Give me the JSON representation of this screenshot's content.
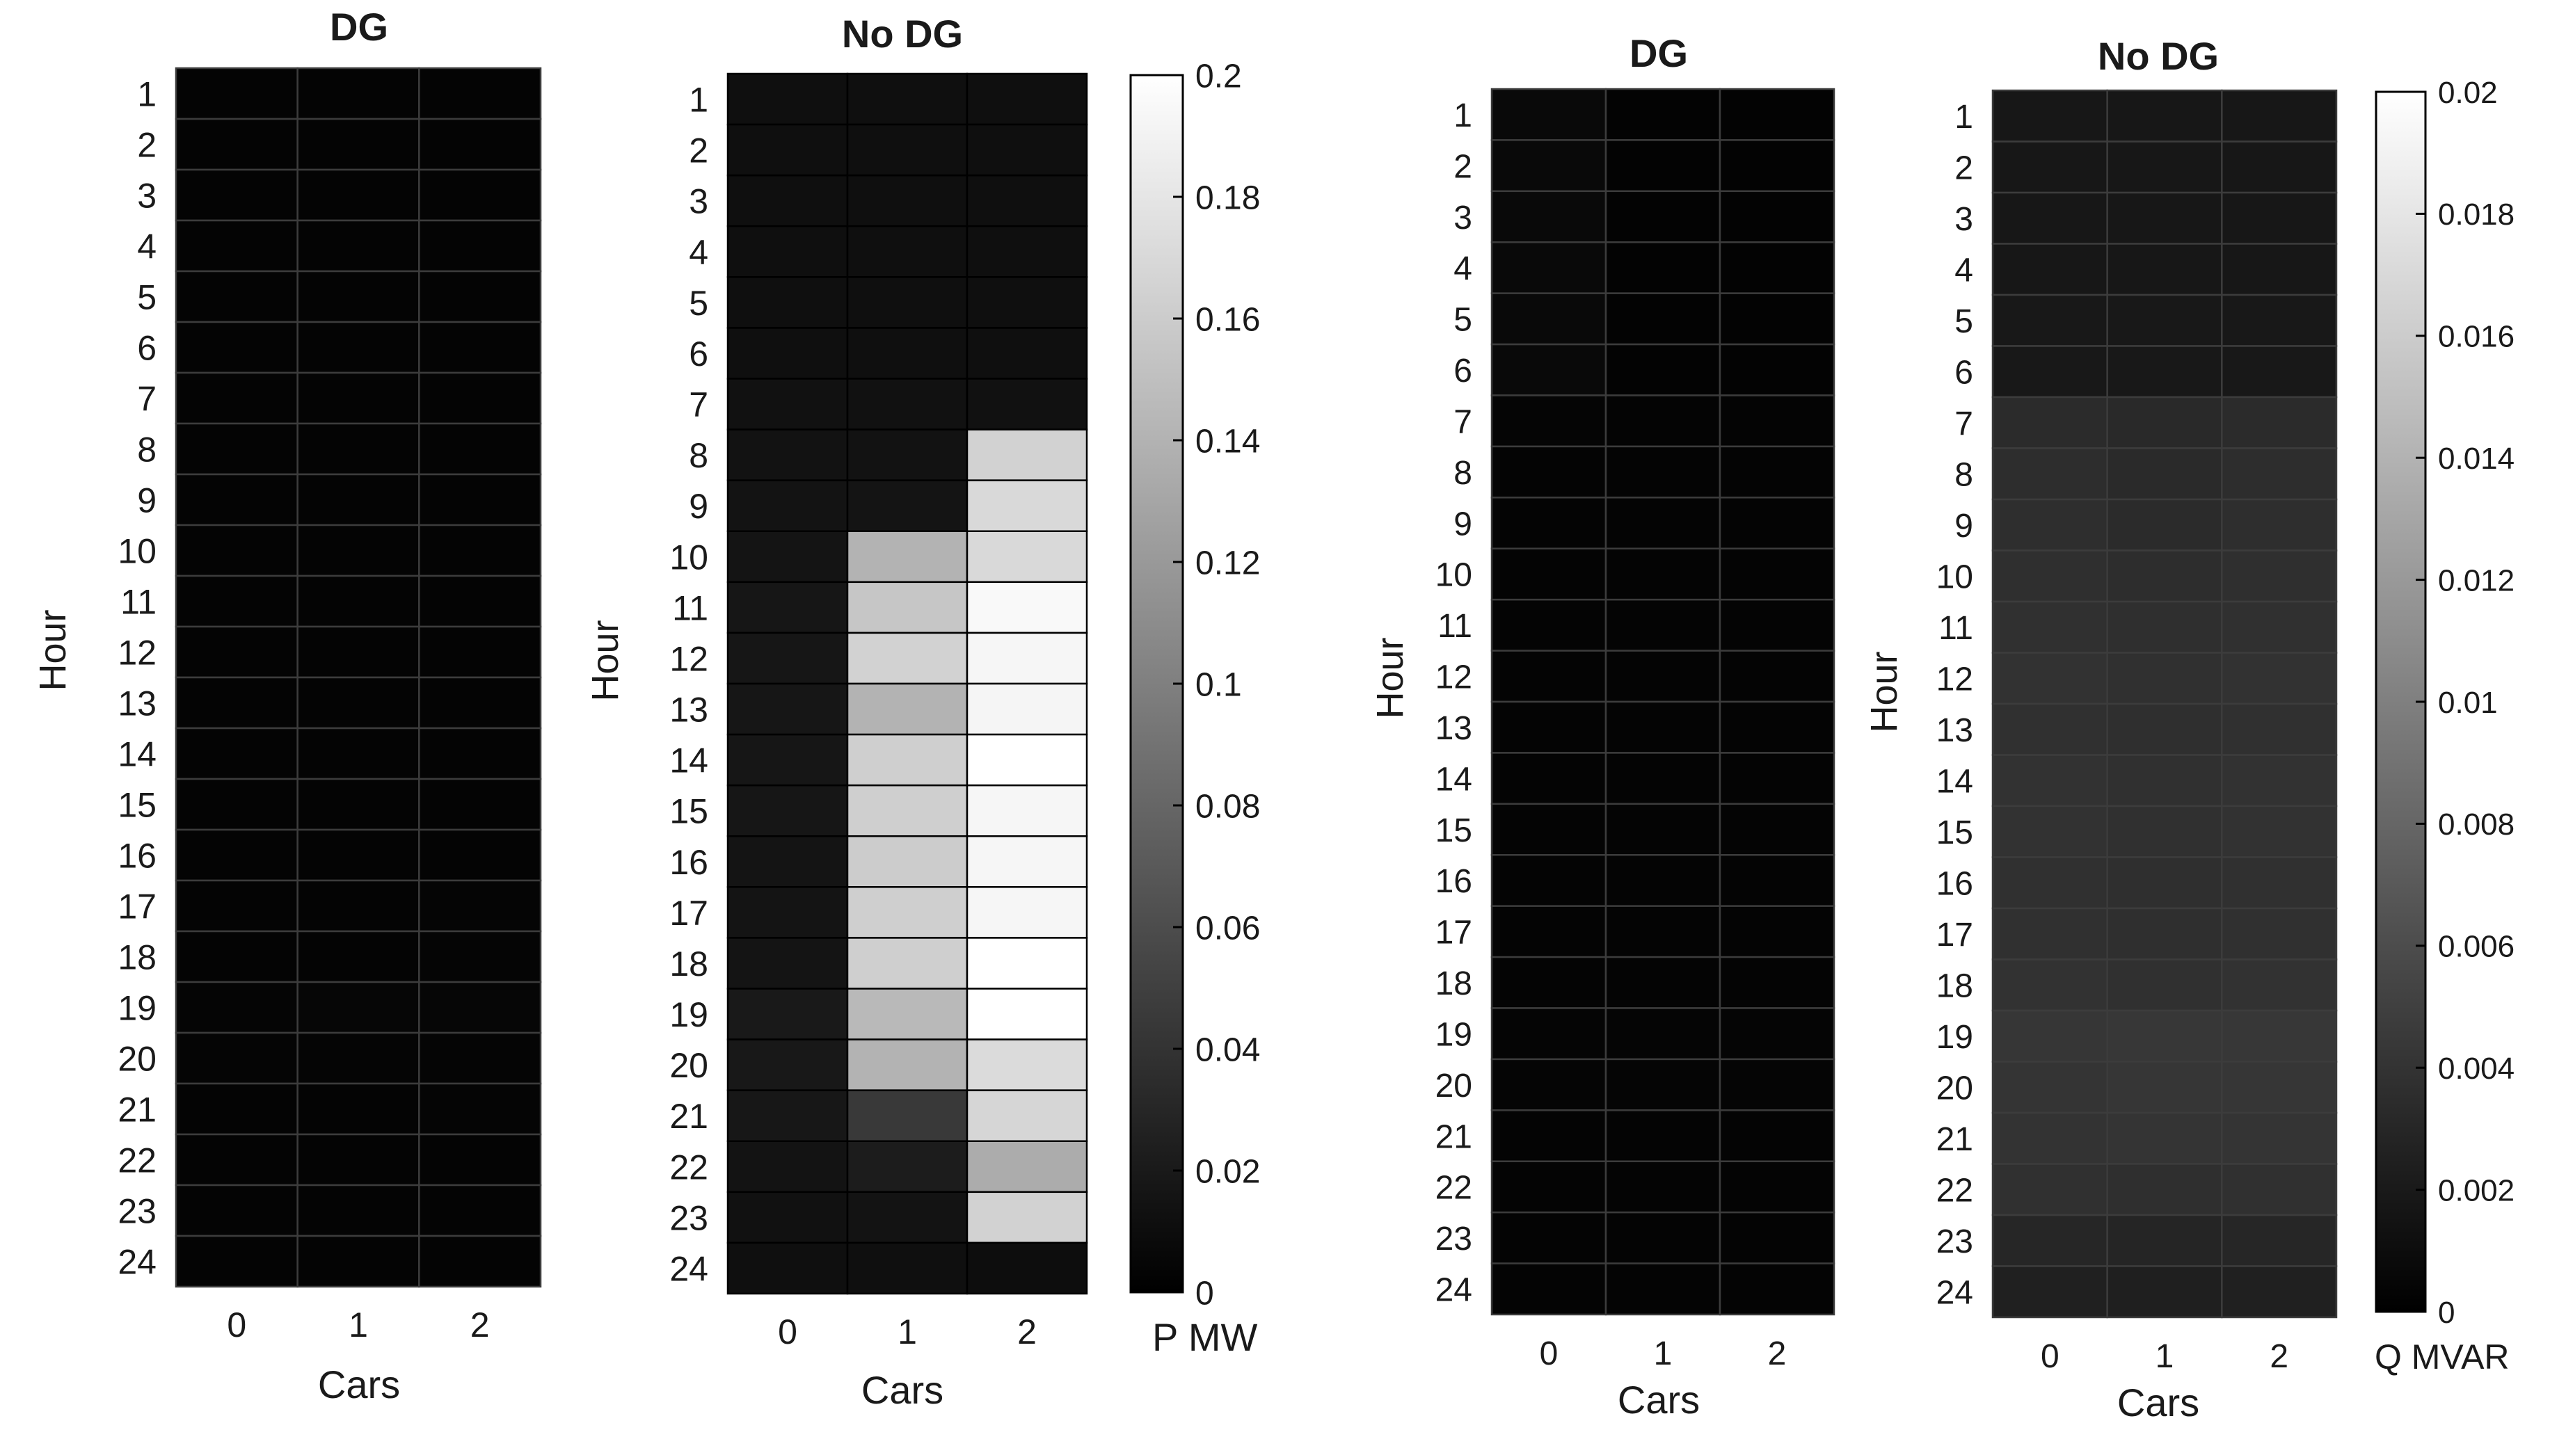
{
  "figure": {
    "panels": [
      {
        "id": "p-dg",
        "title": "DG",
        "xlabel": "Cars",
        "ylabel": "Hour"
      },
      {
        "id": "p-nodg",
        "title": "No DG",
        "xlabel": "Cars",
        "ylabel": "Hour"
      },
      {
        "id": "q-dg",
        "title": "DG",
        "xlabel": "Cars",
        "ylabel": "Hour"
      },
      {
        "id": "q-nodg",
        "title": "No DG",
        "xlabel": "Cars",
        "ylabel": "Hour"
      }
    ],
    "colorbars": [
      {
        "id": "cb-p",
        "label": "P MW",
        "min": 0,
        "max": 0.2,
        "ticks": [
          "0.2",
          "0.18",
          "0.16",
          "0.14",
          "0.12",
          "0.1",
          "0.08",
          "0.06",
          "0.04",
          "0.02",
          "0"
        ],
        "tick_values": [
          0.2,
          0.18,
          0.16,
          0.14,
          0.12,
          0.1,
          0.08,
          0.06,
          0.04,
          0.02,
          0
        ]
      },
      {
        "id": "cb-q",
        "label": "Q MVAR",
        "min": 0,
        "max": 0.02,
        "ticks": [
          "0.02",
          "0.018",
          "0.016",
          "0.014",
          "0.012",
          "0.01",
          "0.008",
          "0.006",
          "0.004",
          "0.002",
          "0"
        ],
        "tick_values": [
          0.02,
          0.018,
          0.016,
          0.014,
          0.012,
          0.01,
          0.008,
          0.006,
          0.004,
          0.002,
          0
        ]
      }
    ]
  },
  "chart_data": [
    {
      "type": "heatmap",
      "title": "DG",
      "xlabel": "Cars",
      "ylabel": "Hour",
      "x": [
        "0",
        "1",
        "2"
      ],
      "y": [
        "1",
        "2",
        "3",
        "4",
        "5",
        "6",
        "7",
        "8",
        "9",
        "10",
        "11",
        "12",
        "13",
        "14",
        "15",
        "16",
        "17",
        "18",
        "19",
        "20",
        "21",
        "22",
        "23",
        "24"
      ],
      "colorbar": {
        "label": "P MW",
        "min": 0,
        "max": 0.2
      },
      "values": [
        [
          0.003,
          0.003,
          0.003
        ],
        [
          0.003,
          0.003,
          0.003
        ],
        [
          0.003,
          0.003,
          0.003
        ],
        [
          0.003,
          0.003,
          0.003
        ],
        [
          0.003,
          0.003,
          0.003
        ],
        [
          0.003,
          0.003,
          0.003
        ],
        [
          0.003,
          0.003,
          0.003
        ],
        [
          0.003,
          0.003,
          0.003
        ],
        [
          0.003,
          0.003,
          0.003
        ],
        [
          0.003,
          0.003,
          0.003
        ],
        [
          0.003,
          0.003,
          0.003
        ],
        [
          0.003,
          0.003,
          0.003
        ],
        [
          0.003,
          0.003,
          0.003
        ],
        [
          0.003,
          0.003,
          0.003
        ],
        [
          0.003,
          0.003,
          0.003
        ],
        [
          0.003,
          0.003,
          0.003
        ],
        [
          0.003,
          0.003,
          0.004
        ],
        [
          0.003,
          0.003,
          0.004
        ],
        [
          0.004,
          0.005,
          0.005
        ],
        [
          0.004,
          0.004,
          0.004
        ],
        [
          0.003,
          0.003,
          0.004
        ],
        [
          0.003,
          0.003,
          0.003
        ],
        [
          0.003,
          0.003,
          0.003
        ],
        [
          0.003,
          0.003,
          0.003
        ]
      ]
    },
    {
      "type": "heatmap",
      "title": "No DG",
      "xlabel": "Cars",
      "ylabel": "Hour",
      "x": [
        "0",
        "1",
        "2"
      ],
      "y": [
        "1",
        "2",
        "3",
        "4",
        "5",
        "6",
        "7",
        "8",
        "9",
        "10",
        "11",
        "12",
        "13",
        "14",
        "15",
        "16",
        "17",
        "18",
        "19",
        "20",
        "21",
        "22",
        "23",
        "24"
      ],
      "colorbar": {
        "label": "P MW",
        "min": 0,
        "max": 0.2
      },
      "values": [
        [
          0.012,
          0.012,
          0.012
        ],
        [
          0.012,
          0.012,
          0.012
        ],
        [
          0.012,
          0.012,
          0.012
        ],
        [
          0.012,
          0.012,
          0.012
        ],
        [
          0.012,
          0.012,
          0.012
        ],
        [
          0.012,
          0.012,
          0.012
        ],
        [
          0.013,
          0.013,
          0.013
        ],
        [
          0.014,
          0.014,
          0.165
        ],
        [
          0.015,
          0.016,
          0.17
        ],
        [
          0.016,
          0.14,
          0.17
        ],
        [
          0.017,
          0.155,
          0.195
        ],
        [
          0.017,
          0.165,
          0.193
        ],
        [
          0.017,
          0.14,
          0.192
        ],
        [
          0.017,
          0.162,
          0.2
        ],
        [
          0.017,
          0.162,
          0.193
        ],
        [
          0.016,
          0.16,
          0.193
        ],
        [
          0.016,
          0.162,
          0.193
        ],
        [
          0.016,
          0.162,
          0.2
        ],
        [
          0.02,
          0.145,
          0.2
        ],
        [
          0.019,
          0.14,
          0.172
        ],
        [
          0.018,
          0.045,
          0.168
        ],
        [
          0.015,
          0.022,
          0.135
        ],
        [
          0.013,
          0.015,
          0.165
        ],
        [
          0.012,
          0.012,
          0.01
        ]
      ]
    },
    {
      "type": "heatmap",
      "title": "DG",
      "xlabel": "Cars",
      "ylabel": "Hour",
      "x": [
        "0",
        "1",
        "2"
      ],
      "y": [
        "1",
        "2",
        "3",
        "4",
        "5",
        "6",
        "7",
        "8",
        "9",
        "10",
        "11",
        "12",
        "13",
        "14",
        "15",
        "16",
        "17",
        "18",
        "19",
        "20",
        "21",
        "22",
        "23",
        "24"
      ],
      "colorbar": {
        "label": "Q MVAR",
        "min": 0,
        "max": 0.02
      },
      "values": [
        [
          0.0007,
          0.0002,
          0.0002
        ],
        [
          0.0007,
          0.0002,
          0.0002
        ],
        [
          0.0007,
          0.0002,
          0.0002
        ],
        [
          0.0007,
          0.0002,
          0.0002
        ],
        [
          0.0007,
          0.0002,
          0.0002
        ],
        [
          0.0007,
          0.0002,
          0.0002
        ],
        [
          0.0004,
          0.0003,
          0.0003
        ],
        [
          0.0003,
          0.0003,
          0.0003
        ],
        [
          0.0003,
          0.0003,
          0.0003
        ],
        [
          0.0003,
          0.0003,
          0.0003
        ],
        [
          0.0003,
          0.0003,
          0.0003
        ],
        [
          0.0003,
          0.0003,
          0.0003
        ],
        [
          0.0003,
          0.0003,
          0.0003
        ],
        [
          0.0003,
          0.0003,
          0.0003
        ],
        [
          0.0003,
          0.0003,
          0.0003
        ],
        [
          0.0003,
          0.0003,
          0.0003
        ],
        [
          0.0003,
          0.0003,
          0.0003
        ],
        [
          0.0003,
          0.0003,
          0.0003
        ],
        [
          0.0004,
          0.0004,
          0.0004
        ],
        [
          0.0004,
          0.0004,
          0.0004
        ],
        [
          0.0003,
          0.0003,
          0.0003
        ],
        [
          0.0003,
          0.0003,
          0.0003
        ],
        [
          0.0003,
          0.0003,
          0.0003
        ],
        [
          0.0003,
          0.0003,
          0.0003
        ]
      ]
    },
    {
      "type": "heatmap",
      "title": "No DG",
      "xlabel": "Cars",
      "ylabel": "Hour",
      "x": [
        "0",
        "1",
        "2"
      ],
      "y": [
        "1",
        "2",
        "3",
        "4",
        "5",
        "6",
        "7",
        "8",
        "9",
        "10",
        "11",
        "12",
        "13",
        "14",
        "15",
        "16",
        "17",
        "18",
        "19",
        "20",
        "21",
        "22",
        "23",
        "24"
      ],
      "colorbar": {
        "label": "Q MVAR",
        "min": 0,
        "max": 0.02
      },
      "values": [
        [
          0.0018,
          0.0018,
          0.0018
        ],
        [
          0.0018,
          0.0018,
          0.0018
        ],
        [
          0.0018,
          0.0018,
          0.0018
        ],
        [
          0.0018,
          0.0018,
          0.0018
        ],
        [
          0.0019,
          0.0019,
          0.0019
        ],
        [
          0.0019,
          0.0019,
          0.0019
        ],
        [
          0.0034,
          0.0032,
          0.0034
        ],
        [
          0.0035,
          0.0033,
          0.0035
        ],
        [
          0.0036,
          0.0034,
          0.0036
        ],
        [
          0.0037,
          0.0035,
          0.0037
        ],
        [
          0.0038,
          0.0037,
          0.0038
        ],
        [
          0.0039,
          0.0038,
          0.0039
        ],
        [
          0.0038,
          0.0037,
          0.0038
        ],
        [
          0.0039,
          0.0038,
          0.0039
        ],
        [
          0.0039,
          0.0038,
          0.0039
        ],
        [
          0.0038,
          0.0037,
          0.0038
        ],
        [
          0.0038,
          0.0037,
          0.0038
        ],
        [
          0.0039,
          0.0038,
          0.0039
        ],
        [
          0.0042,
          0.0043,
          0.0043
        ],
        [
          0.0041,
          0.0042,
          0.0042
        ],
        [
          0.004,
          0.0041,
          0.0041
        ],
        [
          0.0038,
          0.0037,
          0.0038
        ],
        [
          0.003,
          0.0029,
          0.003
        ],
        [
          0.0025,
          0.0024,
          0.0025
        ]
      ]
    }
  ]
}
